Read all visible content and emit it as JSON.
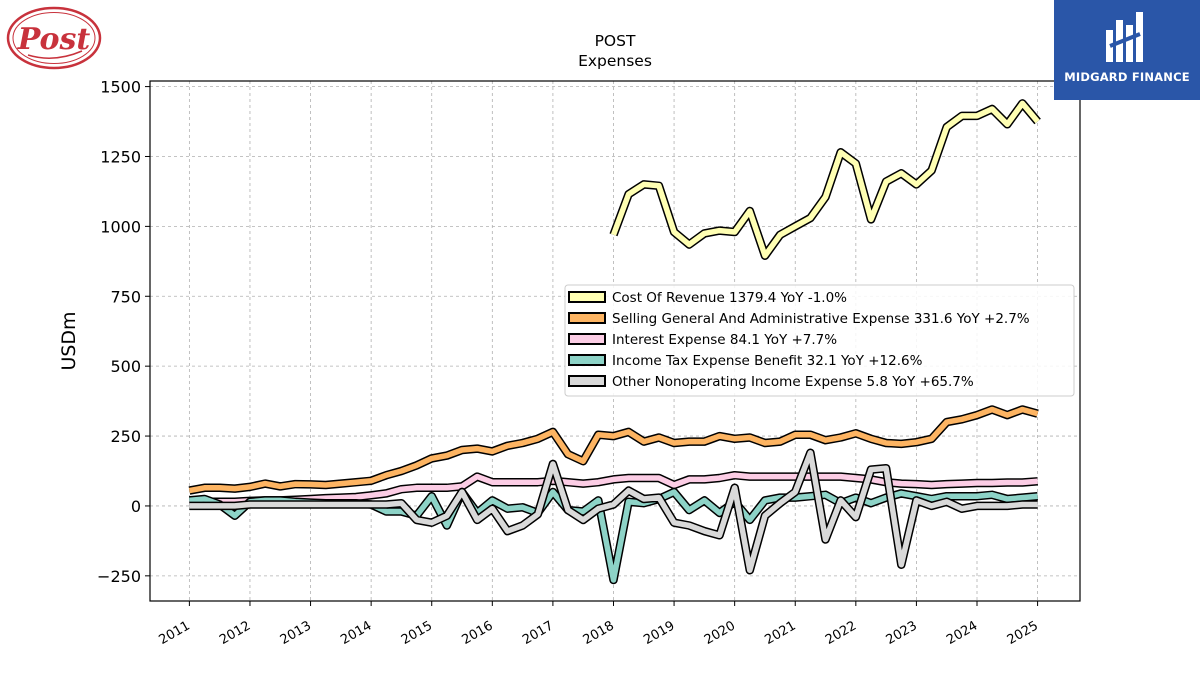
{
  "header": {
    "title": "POST",
    "subtitle": "Expenses",
    "logo_text": "Post",
    "brand_name": "MIDGARD FINANCE"
  },
  "chart_data": {
    "type": "line",
    "title": "POST",
    "subtitle": "Expenses",
    "xlabel": "",
    "ylabel": "USDm",
    "xlim": [
      2010.35,
      2025.7
    ],
    "ylim": [
      -340,
      1520
    ],
    "x_ticks": [
      "2011",
      "2012",
      "2013",
      "2014",
      "2015",
      "2016",
      "2017",
      "2018",
      "2019",
      "2020",
      "2021",
      "2022",
      "2023",
      "2024",
      "2025"
    ],
    "y_ticks": [
      "1500",
      "1250",
      "1000",
      "750",
      "500",
      "250",
      "0",
      "−250"
    ],
    "y_tick_values": [
      1500,
      1250,
      1000,
      750,
      500,
      250,
      0,
      -250
    ],
    "grid": true,
    "legend_position": "center-right",
    "series": [
      {
        "name": "Cost Of Revenue",
        "legend": "Cost Of Revenue  1379.4 YoY -1.0%",
        "color": "#ffffb3",
        "x": [
          2018.0,
          2018.25,
          2018.5,
          2018.75,
          2019.0,
          2019.25,
          2019.5,
          2019.75,
          2020.0,
          2020.25,
          2020.5,
          2020.75,
          2021.0,
          2021.25,
          2021.5,
          2021.75,
          2022.0,
          2022.25,
          2022.5,
          2022.75,
          2023.0,
          2023.25,
          2023.5,
          2023.75,
          2024.0,
          2024.25,
          2024.5,
          2024.75,
          2025.0
        ],
        "y": [
          970,
          1115,
          1150,
          1145,
          980,
          935,
          975,
          985,
          980,
          1055,
          895,
          970,
          1000,
          1030,
          1105,
          1265,
          1225,
          1025,
          1160,
          1190,
          1150,
          1200,
          1355,
          1395,
          1395,
          1420,
          1365,
          1440,
          1375
        ]
      },
      {
        "name": "Selling General And Administrative Expense",
        "legend": "Selling General And Administrative Expense  331.6 YoY +2.7%",
        "color": "#fdb462",
        "x": [
          2011.0,
          2011.25,
          2011.5,
          2011.75,
          2012.0,
          2012.25,
          2012.5,
          2012.75,
          2013.0,
          2013.25,
          2013.5,
          2013.75,
          2014.0,
          2014.25,
          2014.5,
          2014.75,
          2015.0,
          2015.25,
          2015.5,
          2015.75,
          2016.0,
          2016.25,
          2016.5,
          2016.75,
          2017.0,
          2017.25,
          2017.5,
          2017.75,
          2018.0,
          2018.25,
          2018.5,
          2018.75,
          2019.0,
          2019.25,
          2019.5,
          2019.75,
          2020.0,
          2020.25,
          2020.5,
          2020.75,
          2021.0,
          2021.25,
          2021.5,
          2021.75,
          2022.0,
          2022.25,
          2022.5,
          2022.75,
          2023.0,
          2023.25,
          2023.5,
          2023.75,
          2024.0,
          2024.25,
          2024.5,
          2024.75,
          2025.0
        ],
        "y": [
          55,
          65,
          65,
          62,
          68,
          80,
          70,
          78,
          77,
          75,
          80,
          85,
          90,
          110,
          125,
          145,
          170,
          180,
          200,
          205,
          195,
          215,
          225,
          240,
          265,
          185,
          160,
          255,
          250,
          265,
          230,
          245,
          225,
          230,
          230,
          250,
          240,
          245,
          225,
          230,
          255,
          255,
          235,
          245,
          260,
          240,
          225,
          222,
          228,
          240,
          300,
          310,
          325,
          345,
          325,
          345,
          330
        ]
      },
      {
        "name": "Interest Expense",
        "legend": "Interest Expense  84.1 YoY +7.7%",
        "color": "#fccde5",
        "x": [
          2011.0,
          2011.25,
          2011.5,
          2011.75,
          2012.0,
          2012.25,
          2012.5,
          2012.75,
          2013.0,
          2013.25,
          2013.5,
          2013.75,
          2014.0,
          2014.25,
          2014.5,
          2014.75,
          2015.0,
          2015.25,
          2015.5,
          2015.75,
          2016.0,
          2016.25,
          2016.5,
          2016.75,
          2017.0,
          2017.25,
          2017.5,
          2017.75,
          2018.0,
          2018.25,
          2018.5,
          2018.75,
          2019.0,
          2019.25,
          2019.5,
          2019.75,
          2020.0,
          2020.25,
          2020.5,
          2020.75,
          2021.0,
          2021.25,
          2021.5,
          2021.75,
          2022.0,
          2022.25,
          2022.5,
          2022.75,
          2023.0,
          2023.25,
          2023.5,
          2023.75,
          2024.0,
          2024.25,
          2024.5,
          2024.75,
          2025.0
        ],
        "y": [
          15,
          15,
          15,
          15,
          18,
          20,
          20,
          22,
          25,
          28,
          30,
          32,
          38,
          45,
          60,
          65,
          65,
          65,
          70,
          105,
          85,
          85,
          85,
          85,
          90,
          85,
          80,
          85,
          95,
          100,
          100,
          100,
          75,
          95,
          95,
          100,
          110,
          105,
          105,
          105,
          105,
          105,
          105,
          105,
          100,
          95,
          85,
          80,
          78,
          75,
          78,
          80,
          82,
          82,
          84,
          84,
          88
        ]
      },
      {
        "name": "Income Tax Expense Benefit",
        "legend": "Income Tax Expense Benefit  32.1 YoY +12.6%",
        "color": "#8dd3c7",
        "x": [
          2011.0,
          2011.25,
          2011.5,
          2011.75,
          2012.0,
          2012.25,
          2012.5,
          2012.75,
          2013.0,
          2013.25,
          2013.5,
          2013.75,
          2014.0,
          2014.25,
          2014.5,
          2014.75,
          2015.0,
          2015.25,
          2015.5,
          2015.75,
          2016.0,
          2016.25,
          2016.5,
          2016.75,
          2017.0,
          2017.25,
          2017.5,
          2017.75,
          2018.0,
          2018.25,
          2018.5,
          2018.75,
          2019.0,
          2019.25,
          2019.5,
          2019.75,
          2020.0,
          2020.25,
          2020.5,
          2020.75,
          2021.0,
          2021.25,
          2021.5,
          2021.75,
          2022.0,
          2022.25,
          2022.5,
          2022.75,
          2023.0,
          2023.25,
          2023.5,
          2023.75,
          2024.0,
          2024.25,
          2024.5,
          2024.75,
          2025.0
        ],
        "y": [
          20,
          25,
          5,
          -35,
          15,
          20,
          20,
          15,
          12,
          10,
          10,
          10,
          5,
          -20,
          -20,
          -35,
          35,
          -70,
          50,
          -25,
          20,
          -10,
          -5,
          -25,
          50,
          -15,
          -20,
          20,
          -265,
          15,
          10,
          25,
          50,
          -15,
          20,
          -25,
          15,
          -50,
          20,
          30,
          30,
          35,
          40,
          10,
          30,
          10,
          30,
          45,
          35,
          25,
          35,
          35,
          35,
          40,
          25,
          30,
          35
        ]
      },
      {
        "name": "Other Nonoperating Income Expense",
        "legend": "Other Nonoperating Income Expense  5.8 YoY +65.7%",
        "color": "#d9d9d9",
        "x": [
          2011.0,
          2011.25,
          2011.5,
          2011.75,
          2012.0,
          2012.25,
          2012.5,
          2012.75,
          2013.0,
          2013.25,
          2013.5,
          2013.75,
          2014.0,
          2014.25,
          2014.5,
          2014.75,
          2015.0,
          2015.25,
          2015.5,
          2015.75,
          2016.0,
          2016.25,
          2016.5,
          2016.75,
          2017.0,
          2017.25,
          2017.5,
          2017.75,
          2018.0,
          2018.25,
          2018.5,
          2018.75,
          2019.0,
          2019.25,
          2019.5,
          2019.75,
          2020.0,
          2020.25,
          2020.5,
          2020.75,
          2021.0,
          2021.25,
          2021.5,
          2021.75,
          2022.0,
          2022.25,
          2022.5,
          2022.75,
          2023.0,
          2023.25,
          2023.5,
          2023.75,
          2024.0,
          2024.25,
          2024.5,
          2024.75,
          2025.0
        ],
        "y": [
          0,
          0,
          0,
          0,
          5,
          5,
          5,
          5,
          5,
          5,
          5,
          5,
          5,
          5,
          10,
          -50,
          -60,
          -35,
          50,
          -50,
          -10,
          -90,
          -70,
          -30,
          150,
          -15,
          -50,
          -10,
          5,
          55,
          25,
          30,
          -60,
          -70,
          -90,
          -105,
          65,
          -230,
          -35,
          10,
          50,
          190,
          -120,
          20,
          -40,
          130,
          135,
          -210,
          20,
          0,
          15,
          -10,
          0,
          0,
          0,
          5,
          5
        ]
      }
    ]
  }
}
